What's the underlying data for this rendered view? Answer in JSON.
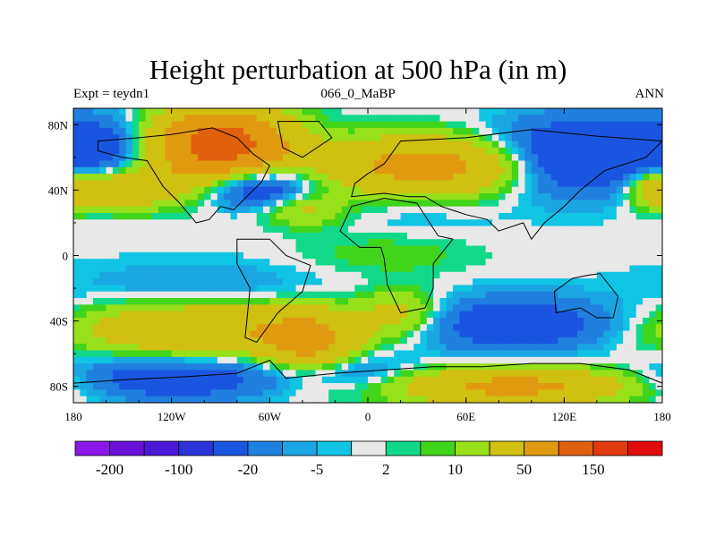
{
  "chart_data": {
    "type": "heatmap",
    "title": "Height perturbation at 500 hPa (in m)",
    "left_label": "Expt = teydn1",
    "center_label": "066_0_MaBP",
    "right_label": "ANN",
    "x_range": [
      -180,
      180
    ],
    "y_range": [
      -90,
      90
    ],
    "x_ticks": [
      {
        "value": -180,
        "label": "180"
      },
      {
        "value": -120,
        "label": "120W"
      },
      {
        "value": -60,
        "label": "60W"
      },
      {
        "value": 0,
        "label": "0"
      },
      {
        "value": 60,
        "label": "60E"
      },
      {
        "value": 120,
        "label": "120E"
      },
      {
        "value": 180,
        "label": "180"
      }
    ],
    "y_ticks": [
      {
        "value": 80,
        "label": "80N"
      },
      {
        "value": 40,
        "label": "40N"
      },
      {
        "value": 0,
        "label": "0"
      },
      {
        "value": -40,
        "label": "40S"
      },
      {
        "value": -80,
        "label": "80S"
      }
    ],
    "levels": [
      -200,
      -150,
      -100,
      -50,
      -20,
      -10,
      -5,
      -2,
      2,
      5,
      10,
      20,
      50,
      100,
      150,
      200
    ],
    "colorbar_labels": [
      {
        "level_index": 0,
        "label": "-200"
      },
      {
        "level_index": 2,
        "label": "-100"
      },
      {
        "level_index": 4,
        "label": "-20"
      },
      {
        "level_index": 6,
        "label": "-5"
      },
      {
        "level_index": 8,
        "label": "2"
      },
      {
        "level_index": 10,
        "label": "10"
      },
      {
        "level_index": 12,
        "label": "50"
      },
      {
        "level_index": 14,
        "label": "150"
      }
    ],
    "colors": [
      "#8a16e8",
      "#6a10d8",
      "#4a18d8",
      "#2a32d8",
      "#1a55e0",
      "#2080e0",
      "#1aa6e2",
      "#10c4e4",
      "#e8e8e8",
      "#12d88a",
      "#40d41a",
      "#98e01a",
      "#d0c010",
      "#e09a10",
      "#e0600e",
      "#e03a10",
      "#e00c0c"
    ],
    "anomaly_centers": [
      {
        "lon": -165,
        "lat": 65,
        "value": -30,
        "spread_lon": 22,
        "spread_lat": 14
      },
      {
        "lon": -90,
        "lat": 68,
        "value": 130,
        "spread_lon": 28,
        "spread_lat": 14
      },
      {
        "lon": -68,
        "lat": 42,
        "value": -45,
        "spread_lon": 22,
        "spread_lat": 9
      },
      {
        "lon": -150,
        "lat": 42,
        "value": 45,
        "spread_lon": 30,
        "spread_lat": 9
      },
      {
        "lon": 40,
        "lat": 55,
        "value": 70,
        "spread_lon": 45,
        "spread_lat": 12
      },
      {
        "lon": 130,
        "lat": 60,
        "value": -55,
        "spread_lon": 40,
        "spread_lat": 16
      },
      {
        "lon": 175,
        "lat": 42,
        "value": 30,
        "spread_lon": 12,
        "spread_lat": 9
      },
      {
        "lon": -40,
        "lat": 28,
        "value": 25,
        "spread_lon": 18,
        "spread_lat": 7
      },
      {
        "lon": 30,
        "lat": 22,
        "value": -5,
        "spread_lon": 35,
        "spread_lat": 7
      },
      {
        "lon": -100,
        "lat": -20,
        "value": -12,
        "spread_lon": 60,
        "spread_lat": 12
      },
      {
        "lon": 10,
        "lat": 0,
        "value": 8,
        "spread_lon": 40,
        "spread_lat": 10
      },
      {
        "lon": -100,
        "lat": -45,
        "value": 50,
        "spread_lon": 55,
        "spread_lat": 12
      },
      {
        "lon": -35,
        "lat": -55,
        "value": 55,
        "spread_lon": 20,
        "spread_lat": 14
      },
      {
        "lon": 20,
        "lat": -35,
        "value": 30,
        "spread_lon": 18,
        "spread_lat": 10
      },
      {
        "lon": 90,
        "lat": -42,
        "value": -35,
        "spread_lon": 45,
        "spread_lat": 12
      },
      {
        "lon": -120,
        "lat": -75,
        "value": -35,
        "spread_lon": 45,
        "spread_lat": 10
      },
      {
        "lon": 90,
        "lat": -80,
        "value": 60,
        "spread_lon": 50,
        "spread_lat": 8
      },
      {
        "lon": -20,
        "lat": -70,
        "value": -25,
        "spread_lon": 30,
        "spread_lat": 8
      }
    ],
    "landmasses": [
      {
        "name": "North America",
        "points": [
          [
            -165,
            70
          ],
          [
            -140,
            72
          ],
          [
            -120,
            74
          ],
          [
            -95,
            78
          ],
          [
            -80,
            72
          ],
          [
            -70,
            62
          ],
          [
            -60,
            55
          ],
          [
            -65,
            45
          ],
          [
            -75,
            35
          ],
          [
            -82,
            28
          ],
          [
            -90,
            30
          ],
          [
            -97,
            22
          ],
          [
            -105,
            20
          ],
          [
            -115,
            32
          ],
          [
            -125,
            42
          ],
          [
            -135,
            58
          ],
          [
            -150,
            60
          ],
          [
            -165,
            64
          ]
        ]
      },
      {
        "name": "Greenland",
        "points": [
          [
            -55,
            82
          ],
          [
            -30,
            82
          ],
          [
            -22,
            72
          ],
          [
            -40,
            60
          ],
          [
            -52,
            66
          ]
        ]
      },
      {
        "name": "South America",
        "points": [
          [
            -80,
            10
          ],
          [
            -60,
            10
          ],
          [
            -50,
            0
          ],
          [
            -35,
            -6
          ],
          [
            -40,
            -22
          ],
          [
            -55,
            -35
          ],
          [
            -68,
            -53
          ],
          [
            -75,
            -50
          ],
          [
            -72,
            -20
          ],
          [
            -80,
            -5
          ]
        ]
      },
      {
        "name": "Eurasia",
        "points": [
          [
            -10,
            36
          ],
          [
            -8,
            44
          ],
          [
            0,
            50
          ],
          [
            10,
            56
          ],
          [
            20,
            70
          ],
          [
            60,
            72
          ],
          [
            100,
            77
          ],
          [
            140,
            73
          ],
          [
            180,
            70
          ],
          [
            170,
            60
          ],
          [
            145,
            52
          ],
          [
            130,
            40
          ],
          [
            120,
            30
          ],
          [
            108,
            20
          ],
          [
            100,
            10
          ],
          [
            95,
            20
          ],
          [
            80,
            15
          ],
          [
            73,
            22
          ],
          [
            60,
            25
          ],
          [
            45,
            30
          ],
          [
            35,
            36
          ],
          [
            25,
            36
          ],
          [
            10,
            38
          ]
        ]
      },
      {
        "name": "Africa",
        "points": [
          [
            -17,
            15
          ],
          [
            -10,
            30
          ],
          [
            10,
            35
          ],
          [
            30,
            32
          ],
          [
            43,
            12
          ],
          [
            52,
            10
          ],
          [
            40,
            -5
          ],
          [
            40,
            -20
          ],
          [
            35,
            -32
          ],
          [
            20,
            -35
          ],
          [
            12,
            -18
          ],
          [
            10,
            -2
          ],
          [
            8,
            5
          ],
          [
            -5,
            5
          ]
        ]
      },
      {
        "name": "Australia",
        "points": [
          [
            114,
            -22
          ],
          [
            125,
            -14
          ],
          [
            135,
            -12
          ],
          [
            142,
            -11
          ],
          [
            153,
            -25
          ],
          [
            150,
            -38
          ],
          [
            140,
            -38
          ],
          [
            130,
            -32
          ],
          [
            115,
            -35
          ]
        ]
      },
      {
        "name": "Antarctica",
        "points": [
          [
            -180,
            -78
          ],
          [
            -150,
            -76
          ],
          [
            -110,
            -74
          ],
          [
            -80,
            -72
          ],
          [
            -60,
            -64
          ],
          [
            -50,
            -75
          ],
          [
            -20,
            -72
          ],
          [
            10,
            -70
          ],
          [
            40,
            -68
          ],
          [
            70,
            -68
          ],
          [
            100,
            -66
          ],
          [
            130,
            -66
          ],
          [
            160,
            -70
          ],
          [
            180,
            -78
          ],
          [
            180,
            -90
          ],
          [
            -180,
            -90
          ]
        ]
      }
    ]
  }
}
